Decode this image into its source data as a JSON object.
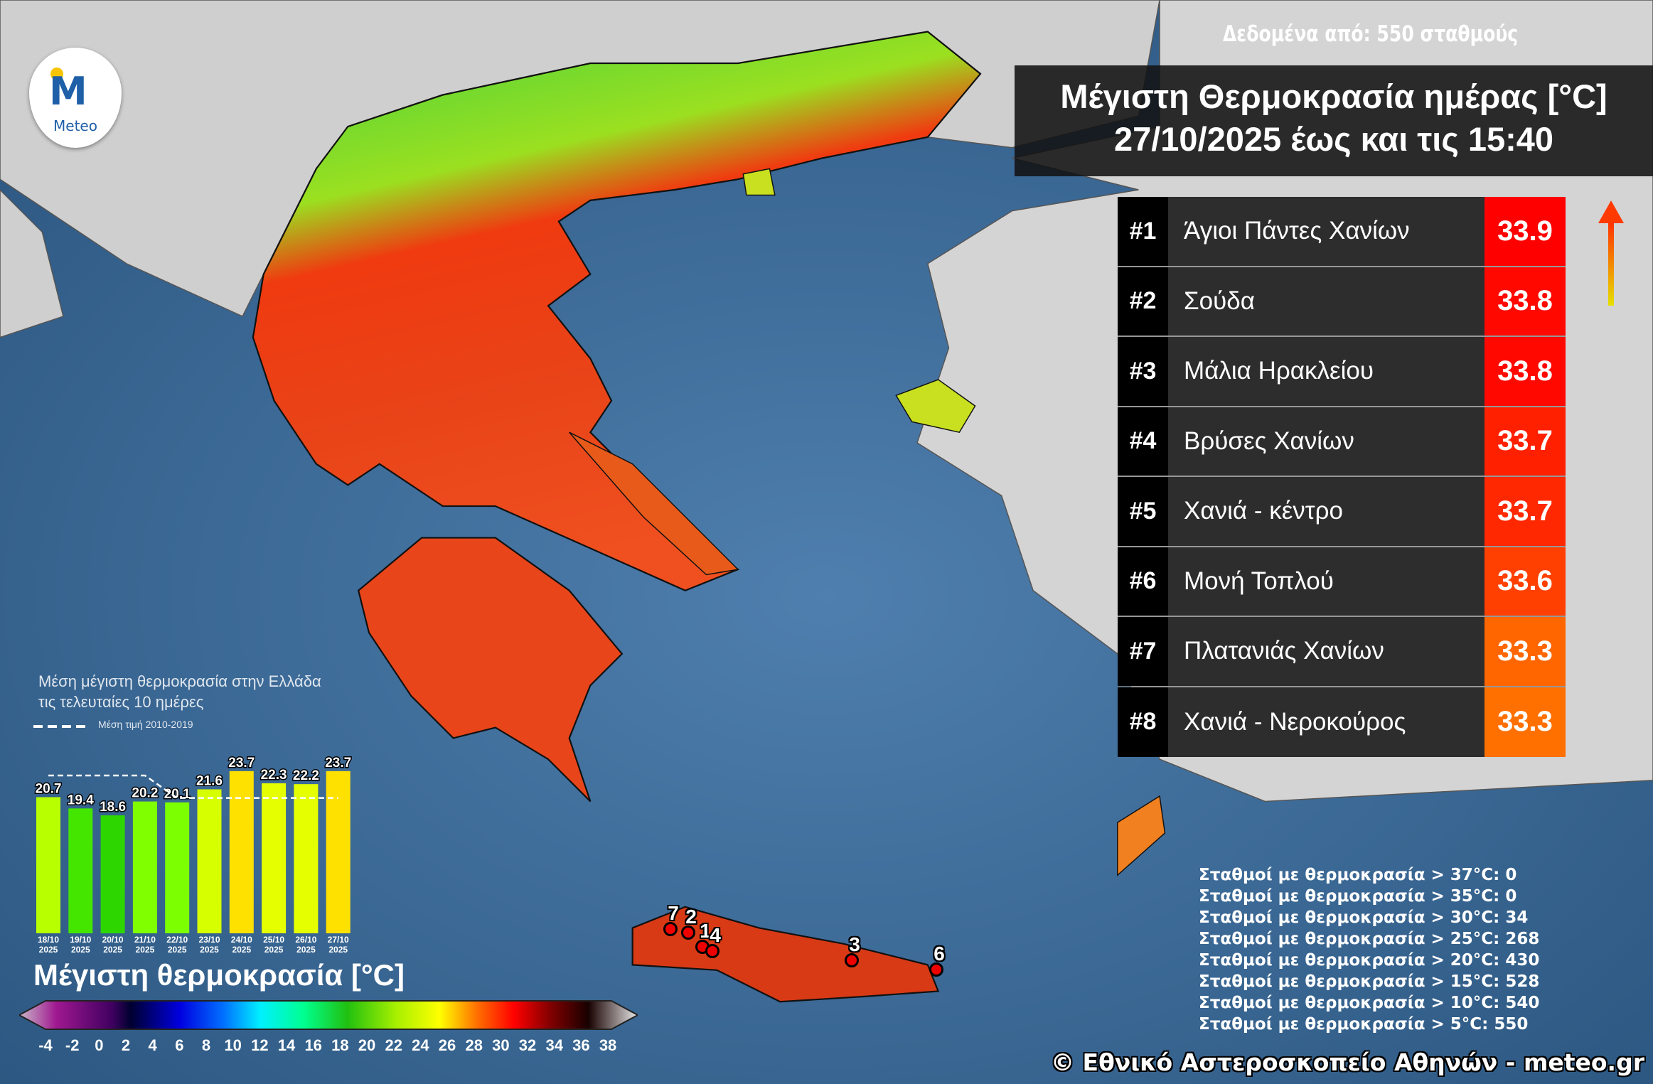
{
  "logo": {
    "text": "Meteo",
    "icon": "meteo-logo"
  },
  "source": "Δεδομένα από: 550 σταθμούς",
  "title": {
    "line1": "Μέγιστη Θερμοκρασία ημέρας [°C]",
    "line2": "27/10/2025 έως και τις 15:40"
  },
  "ranking": [
    {
      "rank": "#1",
      "name": "Άγιοι Πάντες Χανίων",
      "value": "33.9",
      "color": "#ff0000"
    },
    {
      "rank": "#2",
      "name": "Σούδα",
      "value": "33.8",
      "color": "#ff0800"
    },
    {
      "rank": "#3",
      "name": "Μάλια Ηρακλείου",
      "value": "33.8",
      "color": "#ff0800"
    },
    {
      "rank": "#4",
      "name": "Βρύσες Χανίων",
      "value": "33.7",
      "color": "#ff2000"
    },
    {
      "rank": "#5",
      "name": "Χανιά - κέντρο",
      "value": "33.7",
      "color": "#ff2800"
    },
    {
      "rank": "#6",
      "name": "Μονή Τοπλού",
      "value": "33.6",
      "color": "#ff4000"
    },
    {
      "rank": "#7",
      "name": "Πλατανιάς Χανίων",
      "value": "33.3",
      "color": "#ff6600"
    },
    {
      "rank": "#8",
      "name": "Χανιά - Νεροκούρος",
      "value": "33.3",
      "color": "#ff7000"
    }
  ],
  "markers": [
    "7",
    "2",
    "1",
    "4",
    "3",
    "6"
  ],
  "bar_chart": {
    "title1": "Μέση μέγιστη θερμοκρασία στην Ελλάδα",
    "title2": "τις τελευταίες 10 ημέρες",
    "legend": "Μέση τιμή 2010-2019"
  },
  "chart_data": {
    "type": "bar",
    "categories": [
      "18/10 2025",
      "19/10 2025",
      "20/10 2025",
      "21/10 2025",
      "22/10 2025",
      "23/10 2025",
      "24/10 2025",
      "25/10 2025",
      "26/10 2025",
      "27/10 2025"
    ],
    "values": [
      20.7,
      19.4,
      18.6,
      20.2,
      20.1,
      21.6,
      23.7,
      22.3,
      22.2,
      23.7
    ],
    "labels": [
      "20.7",
      "19.4",
      "18.6",
      "20.2",
      "20.1",
      "21.6",
      "23.7",
      "22.3",
      "22.2",
      "23.7"
    ],
    "colors": [
      "#b8ff00",
      "#44e600",
      "#2ed600",
      "#80ff00",
      "#7cff00",
      "#d6ff00",
      "#ffe100",
      "#e5ff00",
      "#e5ff00",
      "#ffe100"
    ],
    "series": [
      {
        "name": "Μέση τιμή 2010-2019",
        "values": [
          23.2,
          23.2,
          23.2,
          23.2,
          20.6,
          20.6,
          20.6,
          20.6,
          20.6,
          20.6
        ],
        "style": "dashed",
        "color": "#ffffff"
      }
    ],
    "ylim": [
      5,
      24
    ]
  },
  "colorbar": {
    "title": "Μέγιστη θερμοκρασία [°C]",
    "ticks": [
      "-4",
      "-2",
      "0",
      "2",
      "4",
      "6",
      "8",
      "10",
      "12",
      "14",
      "16",
      "18",
      "20",
      "22",
      "24",
      "26",
      "28",
      "30",
      "32",
      "34",
      "36",
      "38"
    ]
  },
  "stats": [
    "Σταθμοί με θερμοκρασία > 37°C: 0",
    "Σταθμοί με θερμοκρασία > 35°C: 0",
    "Σταθμοί με θερμοκρασία > 30°C: 34",
    "Σταθμοί με θερμοκρασία > 25°C: 268",
    "Σταθμοί με θερμοκρασία > 20°C: 430",
    "Σταθμοί με θερμοκρασία > 15°C: 528",
    "Σταθμοί με θερμοκρασία > 10°C: 540",
    "Σταθμοί με θερμοκρασία > 5°C: 550"
  ],
  "footer": "© Εθνικό Αστεροσκοπείο Αθηνών - meteo.gr"
}
